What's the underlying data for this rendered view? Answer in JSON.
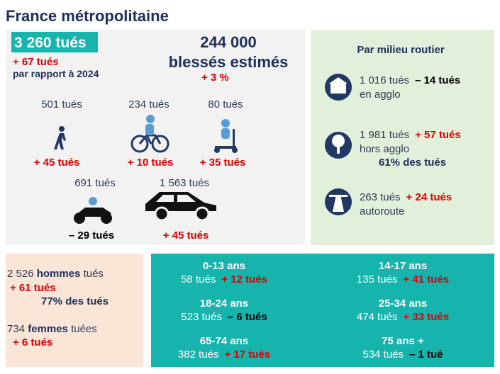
{
  "header": {
    "title": "France métropolitaine"
  },
  "summary": {
    "killed": "3 260 tués",
    "killed_change": "+ 67 tués",
    "comparison": "par rapport à 2024",
    "injured": "244 000",
    "injured_label": "blessés estimés",
    "injured_change": "+ 3 %"
  },
  "modes": [
    {
      "killed": "501 tués",
      "change": "+ 45 tués"
    },
    {
      "killed": "234 tués",
      "change": "+ 10 tués"
    },
    {
      "killed": "80 tués",
      "change": "+ 35 tués"
    },
    {
      "killed": "691 tués",
      "change": "– 29 tués"
    },
    {
      "killed": "1 563 tués",
      "change": "+ 45 tués"
    }
  ],
  "road": {
    "title": "Par milieu routier",
    "items": [
      {
        "killed": "1 016 tués",
        "change": "– 14 tués",
        "label": "en agglo"
      },
      {
        "killed": "1 981 tués",
        "change": "+ 57 tués",
        "label": "hors agglo",
        "share": "61% des tués"
      },
      {
        "killed": "263 tués",
        "change": "+ 24 tués",
        "label": "autoroute"
      }
    ]
  },
  "gender": [
    {
      "count": "2 526",
      "label": "hommes",
      "suffix": "tués",
      "change": "+ 61 tués",
      "share": "77% des tués"
    },
    {
      "count": "734",
      "label": "femmes",
      "suffix": "tuées",
      "change": "+ 6 tués"
    }
  ],
  "ages": [
    {
      "label": "0-13 ans",
      "killed": "58 tués",
      "change": "+ 12 tués"
    },
    {
      "label": "14-17 ans",
      "killed": "135 tués",
      "change": "+ 41 tués"
    },
    {
      "label": "18-24 ans",
      "killed": "523 tués",
      "change": "– 6 tués"
    },
    {
      "label": "25-34 ans",
      "killed": "474 tués",
      "change": "+ 33 tués"
    },
    {
      "label": "65-74 ans",
      "killed": "382 tués",
      "change": "+ 17 tués"
    },
    {
      "label": "75 ans +",
      "killed": "534 tués",
      "change": "– 1 tué"
    }
  ]
}
